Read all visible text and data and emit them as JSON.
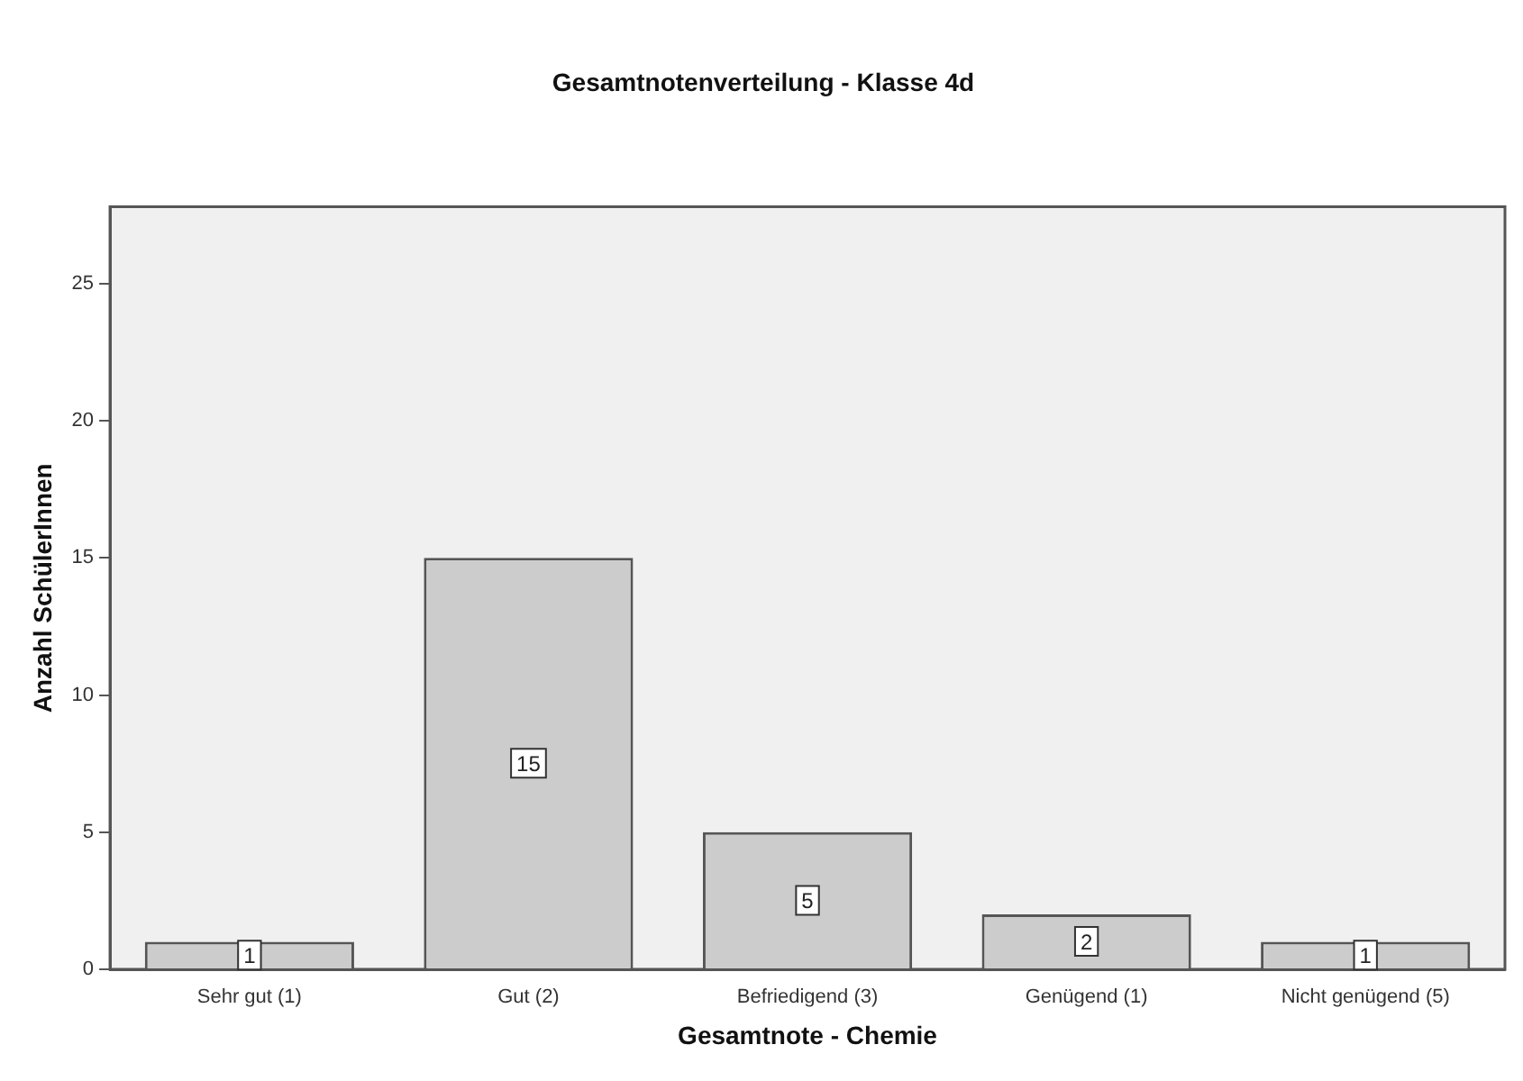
{
  "chart_data": {
    "type": "bar",
    "title": "Gesamtnotenverteilung - Klasse 4d",
    "xlabel": "Gesamtnote - Chemie",
    "ylabel": "Anzahl SchülerInnen",
    "categories": [
      "Sehr gut (1)",
      "Gut (2)",
      "Befriedigend (3)",
      "Genügend (1)",
      "Nicht genügend (5)"
    ],
    "values": [
      1,
      15,
      5,
      2,
      1
    ],
    "color": "#cccccc",
    "ylim": [
      0,
      27.8
    ],
    "yticks": [
      0,
      5,
      10,
      15,
      20,
      25
    ],
    "grid": false,
    "legend": false,
    "data_labels": true
  }
}
